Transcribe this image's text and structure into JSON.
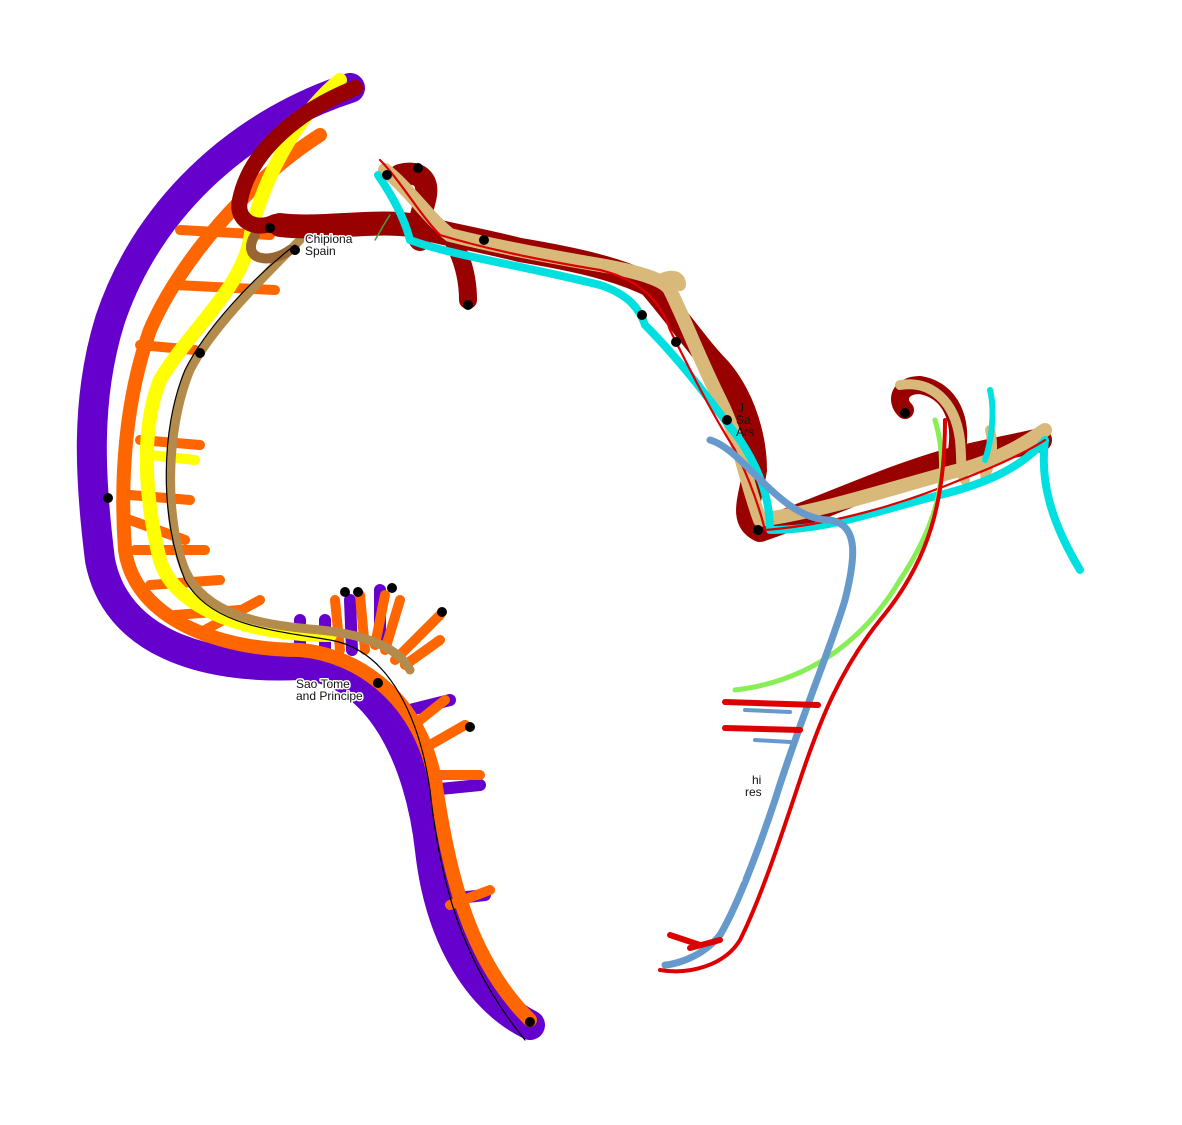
{
  "map": {
    "routes": [
      {
        "id": "purple-west-coast",
        "color": "#6600cc"
      },
      {
        "id": "orange-west-coast",
        "color": "#ff6600"
      },
      {
        "id": "yellow-west-coast",
        "color": "#ffff00"
      },
      {
        "id": "tan-west-coast",
        "color": "#b38b4d"
      },
      {
        "id": "darkred-north-coast",
        "color": "#990000"
      },
      {
        "id": "sand-north-coast",
        "color": "#d9b97a"
      },
      {
        "id": "cyan-north-coast",
        "color": "#00e0e0"
      },
      {
        "id": "red-thin-line",
        "color": "#dd0000"
      },
      {
        "id": "steelblue-east-coast",
        "color": "#6699cc"
      },
      {
        "id": "lightgreen-east-coast",
        "color": "#88ee55"
      },
      {
        "id": "black-thin-line",
        "color": "#000000"
      }
    ],
    "labels": {
      "chipiona": "Chipiona",
      "spain": "Spain",
      "sao_tome_1": "Sao Tome",
      "sao_tome_2": "and Principe",
      "fragment_j": "J",
      "fragment_sa": "Sa",
      "fragment_ars": "Ars",
      "fragment_hi": "hi",
      "fragment_res": "res"
    }
  }
}
